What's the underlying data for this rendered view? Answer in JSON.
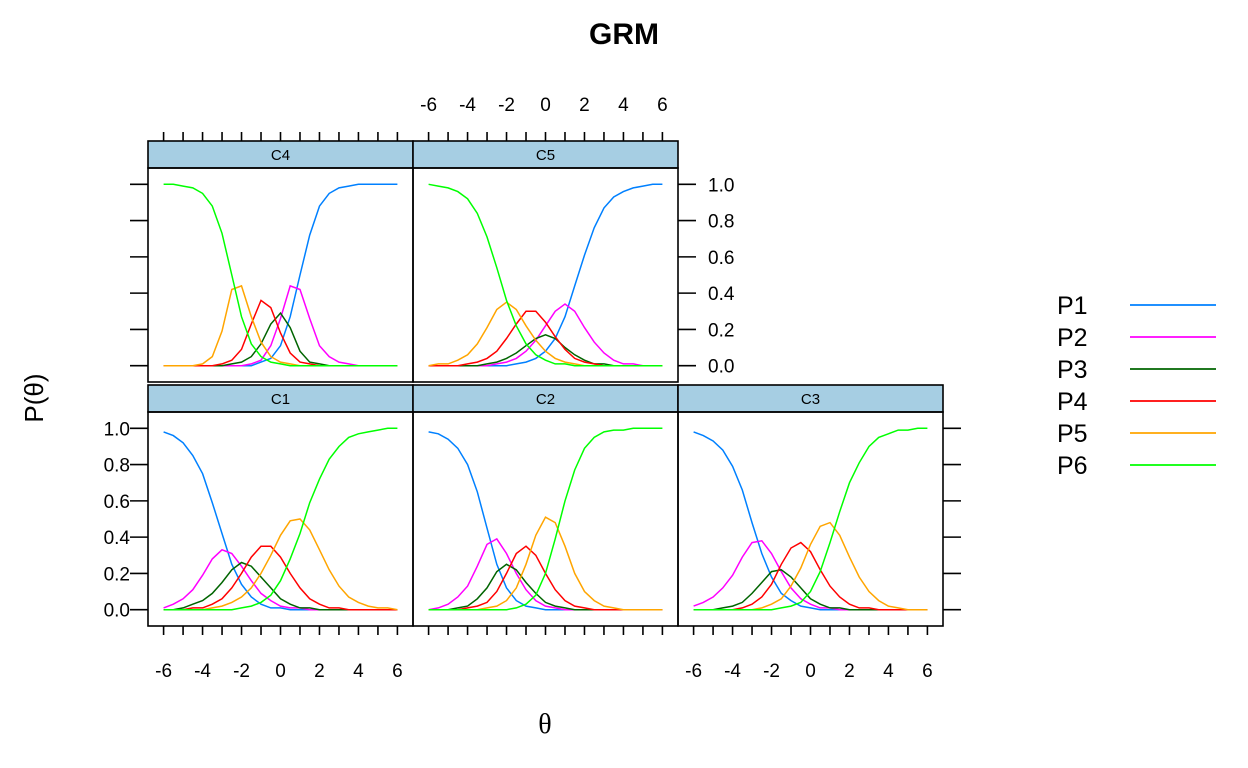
{
  "chart_data": {
    "type": "line",
    "title": "GRM",
    "xlabel": "θ",
    "ylabel": "P(θ)",
    "xlim": [
      -6.8,
      6.8
    ],
    "ylim": [
      -0.09,
      1.09
    ],
    "x_ticks": [
      -6,
      -4,
      -2,
      0,
      2,
      4,
      6
    ],
    "x_tick_labels": [
      "-6",
      "-4",
      "-2",
      "0",
      "2",
      "4",
      "6"
    ],
    "y_ticks": [
      0.0,
      0.2,
      0.4,
      0.6,
      0.8,
      1.0
    ],
    "y_tick_labels": [
      "0.0",
      "0.2",
      "0.4",
      "0.6",
      "0.8",
      "1.0"
    ],
    "x_grid": [
      -6,
      -5,
      -4,
      -3,
      -2,
      -1,
      0,
      1,
      2,
      3,
      4,
      5,
      6
    ],
    "grid": false,
    "legend_position": "right",
    "series_names": [
      "P1",
      "P2",
      "P3",
      "P4",
      "P5",
      "P6"
    ],
    "series_colors": [
      "#0080ff",
      "#ff00ff",
      "#006400",
      "#ff0000",
      "#ffa500",
      "#00ff00"
    ],
    "panels": [
      {
        "name": "C1",
        "P1": [
          0.98,
          0.96,
          0.92,
          0.85,
          0.75,
          0.59,
          0.42,
          0.25,
          0.14,
          0.07,
          0.03,
          0.01,
          0.01,
          0.0,
          0.0,
          0.0,
          0.0,
          0.0,
          0.0,
          0.0,
          0.0,
          0.0,
          0.0,
          0.0,
          0.0
        ],
        "P2": [
          0.01,
          0.03,
          0.06,
          0.11,
          0.19,
          0.28,
          0.33,
          0.31,
          0.24,
          0.16,
          0.09,
          0.05,
          0.02,
          0.01,
          0.01,
          0.0,
          0.0,
          0.0,
          0.0,
          0.0,
          0.0,
          0.0,
          0.0,
          0.0,
          0.0
        ],
        "P3": [
          0.0,
          0.0,
          0.01,
          0.03,
          0.05,
          0.09,
          0.15,
          0.22,
          0.26,
          0.24,
          0.18,
          0.12,
          0.06,
          0.03,
          0.01,
          0.01,
          0.0,
          0.0,
          0.0,
          0.0,
          0.0,
          0.0,
          0.0,
          0.0,
          0.0
        ],
        "P4": [
          0.0,
          0.0,
          0.0,
          0.01,
          0.01,
          0.03,
          0.06,
          0.12,
          0.2,
          0.29,
          0.35,
          0.35,
          0.29,
          0.2,
          0.12,
          0.06,
          0.03,
          0.01,
          0.01,
          0.0,
          0.0,
          0.0,
          0.0,
          0.0,
          0.0
        ],
        "P5": [
          0.0,
          0.0,
          0.0,
          0.0,
          0.0,
          0.01,
          0.02,
          0.04,
          0.07,
          0.12,
          0.2,
          0.3,
          0.41,
          0.49,
          0.5,
          0.44,
          0.33,
          0.22,
          0.13,
          0.07,
          0.04,
          0.02,
          0.01,
          0.01,
          0.0
        ],
        "P6": [
          0.0,
          0.0,
          0.0,
          0.0,
          0.0,
          0.0,
          0.0,
          0.0,
          0.01,
          0.02,
          0.04,
          0.08,
          0.16,
          0.28,
          0.42,
          0.59,
          0.72,
          0.83,
          0.9,
          0.95,
          0.97,
          0.98,
          0.99,
          1.0,
          1.0
        ]
      },
      {
        "name": "C2",
        "P1": [
          0.98,
          0.97,
          0.94,
          0.89,
          0.8,
          0.65,
          0.45,
          0.25,
          0.12,
          0.05,
          0.02,
          0.01,
          0.0,
          0.0,
          0.0,
          0.0,
          0.0,
          0.0,
          0.0,
          0.0,
          0.0,
          0.0,
          0.0,
          0.0,
          0.0
        ],
        "P2": [
          0.0,
          0.01,
          0.03,
          0.07,
          0.13,
          0.24,
          0.36,
          0.39,
          0.31,
          0.2,
          0.11,
          0.05,
          0.02,
          0.01,
          0.0,
          0.0,
          0.0,
          0.0,
          0.0,
          0.0,
          0.0,
          0.0,
          0.0,
          0.0,
          0.0
        ],
        "P3": [
          0.0,
          0.0,
          0.0,
          0.01,
          0.02,
          0.06,
          0.12,
          0.21,
          0.25,
          0.22,
          0.15,
          0.09,
          0.04,
          0.02,
          0.01,
          0.0,
          0.0,
          0.0,
          0.0,
          0.0,
          0.0,
          0.0,
          0.0,
          0.0,
          0.0
        ],
        "P4": [
          0.0,
          0.0,
          0.0,
          0.0,
          0.01,
          0.02,
          0.04,
          0.1,
          0.2,
          0.31,
          0.35,
          0.3,
          0.2,
          0.11,
          0.05,
          0.02,
          0.01,
          0.0,
          0.0,
          0.0,
          0.0,
          0.0,
          0.0,
          0.0,
          0.0
        ],
        "P5": [
          0.0,
          0.0,
          0.0,
          0.0,
          0.0,
          0.0,
          0.01,
          0.02,
          0.05,
          0.12,
          0.25,
          0.41,
          0.51,
          0.48,
          0.35,
          0.2,
          0.1,
          0.05,
          0.02,
          0.01,
          0.0,
          0.0,
          0.0,
          0.0,
          0.0
        ],
        "P6": [
          0.0,
          0.0,
          0.0,
          0.0,
          0.0,
          0.0,
          0.0,
          0.0,
          0.0,
          0.01,
          0.03,
          0.08,
          0.2,
          0.39,
          0.6,
          0.77,
          0.89,
          0.95,
          0.98,
          0.99,
          0.99,
          1.0,
          1.0,
          1.0,
          1.0
        ]
      },
      {
        "name": "C3",
        "P1": [
          0.98,
          0.96,
          0.93,
          0.88,
          0.79,
          0.66,
          0.48,
          0.31,
          0.18,
          0.09,
          0.05,
          0.02,
          0.01,
          0.0,
          0.0,
          0.0,
          0.0,
          0.0,
          0.0,
          0.0,
          0.0,
          0.0,
          0.0,
          0.0,
          0.0
        ],
        "P2": [
          0.02,
          0.04,
          0.07,
          0.12,
          0.19,
          0.29,
          0.37,
          0.38,
          0.31,
          0.21,
          0.12,
          0.06,
          0.03,
          0.01,
          0.01,
          0.0,
          0.0,
          0.0,
          0.0,
          0.0,
          0.0,
          0.0,
          0.0,
          0.0,
          0.0
        ],
        "P3": [
          0.0,
          0.0,
          0.0,
          0.01,
          0.02,
          0.04,
          0.09,
          0.15,
          0.21,
          0.22,
          0.18,
          0.12,
          0.06,
          0.03,
          0.01,
          0.01,
          0.0,
          0.0,
          0.0,
          0.0,
          0.0,
          0.0,
          0.0,
          0.0,
          0.0
        ],
        "P4": [
          0.0,
          0.0,
          0.0,
          0.0,
          0.0,
          0.01,
          0.03,
          0.07,
          0.14,
          0.25,
          0.34,
          0.37,
          0.32,
          0.22,
          0.13,
          0.07,
          0.03,
          0.01,
          0.01,
          0.0,
          0.0,
          0.0,
          0.0,
          0.0,
          0.0
        ],
        "P5": [
          0.0,
          0.0,
          0.0,
          0.0,
          0.0,
          0.0,
          0.0,
          0.01,
          0.03,
          0.06,
          0.13,
          0.23,
          0.36,
          0.46,
          0.48,
          0.41,
          0.29,
          0.18,
          0.1,
          0.05,
          0.02,
          0.01,
          0.0,
          0.0,
          0.0
        ],
        "P6": [
          0.0,
          0.0,
          0.0,
          0.0,
          0.0,
          0.0,
          0.0,
          0.0,
          0.0,
          0.01,
          0.02,
          0.04,
          0.1,
          0.21,
          0.37,
          0.54,
          0.7,
          0.81,
          0.9,
          0.95,
          0.97,
          0.99,
          0.99,
          1.0,
          1.0
        ]
      },
      {
        "name": "C4",
        "P1": [
          0.0,
          0.0,
          0.0,
          0.0,
          0.0,
          0.0,
          0.0,
          0.0,
          0.0,
          0.0,
          0.02,
          0.04,
          0.11,
          0.27,
          0.5,
          0.72,
          0.88,
          0.95,
          0.98,
          0.99,
          1.0,
          1.0,
          1.0,
          1.0,
          1.0
        ],
        "P2": [
          0.0,
          0.0,
          0.0,
          0.0,
          0.0,
          0.0,
          0.0,
          0.0,
          0.0,
          0.01,
          0.03,
          0.11,
          0.26,
          0.44,
          0.42,
          0.26,
          0.11,
          0.05,
          0.02,
          0.01,
          0.0,
          0.0,
          0.0,
          0.0,
          0.0
        ],
        "P3": [
          0.0,
          0.0,
          0.0,
          0.0,
          0.0,
          0.0,
          0.0,
          0.01,
          0.02,
          0.05,
          0.12,
          0.23,
          0.29,
          0.21,
          0.08,
          0.02,
          0.01,
          0.0,
          0.0,
          0.0,
          0.0,
          0.0,
          0.0,
          0.0,
          0.0
        ],
        "P4": [
          0.0,
          0.0,
          0.0,
          0.0,
          0.0,
          0.0,
          0.01,
          0.03,
          0.09,
          0.23,
          0.36,
          0.32,
          0.18,
          0.07,
          0.02,
          0.01,
          0.0,
          0.0,
          0.0,
          0.0,
          0.0,
          0.0,
          0.0,
          0.0,
          0.0
        ],
        "P5": [
          0.0,
          0.0,
          0.0,
          0.0,
          0.01,
          0.05,
          0.19,
          0.42,
          0.44,
          0.27,
          0.13,
          0.05,
          0.02,
          0.01,
          0.0,
          0.0,
          0.0,
          0.0,
          0.0,
          0.0,
          0.0,
          0.0,
          0.0,
          0.0,
          0.0
        ],
        "P6": [
          1.0,
          1.0,
          0.99,
          0.98,
          0.95,
          0.88,
          0.73,
          0.5,
          0.27,
          0.12,
          0.05,
          0.02,
          0.01,
          0.0,
          0.0,
          0.0,
          0.0,
          0.0,
          0.0,
          0.0,
          0.0,
          0.0,
          0.0,
          0.0,
          0.0
        ]
      },
      {
        "name": "C5",
        "P1": [
          0.0,
          0.0,
          0.0,
          0.0,
          0.0,
          0.0,
          0.0,
          0.0,
          0.0,
          0.01,
          0.02,
          0.04,
          0.08,
          0.15,
          0.27,
          0.44,
          0.61,
          0.76,
          0.87,
          0.93,
          0.96,
          0.98,
          0.99,
          1.0,
          1.0
        ],
        "P2": [
          0.0,
          0.0,
          0.0,
          0.0,
          0.0,
          0.0,
          0.0,
          0.01,
          0.02,
          0.04,
          0.08,
          0.14,
          0.22,
          0.3,
          0.34,
          0.3,
          0.21,
          0.13,
          0.07,
          0.03,
          0.01,
          0.01,
          0.0,
          0.0,
          0.0
        ],
        "P3": [
          0.0,
          0.0,
          0.0,
          0.0,
          0.0,
          0.0,
          0.01,
          0.02,
          0.04,
          0.07,
          0.11,
          0.15,
          0.17,
          0.15,
          0.1,
          0.06,
          0.03,
          0.01,
          0.01,
          0.0,
          0.0,
          0.0,
          0.0,
          0.0,
          0.0
        ],
        "P4": [
          0.0,
          0.0,
          0.0,
          0.0,
          0.01,
          0.02,
          0.04,
          0.08,
          0.15,
          0.23,
          0.3,
          0.3,
          0.24,
          0.16,
          0.09,
          0.04,
          0.02,
          0.01,
          0.0,
          0.0,
          0.0,
          0.0,
          0.0,
          0.0,
          0.0
        ],
        "P5": [
          0.0,
          0.01,
          0.01,
          0.03,
          0.06,
          0.12,
          0.21,
          0.31,
          0.35,
          0.31,
          0.22,
          0.14,
          0.08,
          0.04,
          0.02,
          0.01,
          0.0,
          0.0,
          0.0,
          0.0,
          0.0,
          0.0,
          0.0,
          0.0,
          0.0
        ],
        "P6": [
          1.0,
          0.99,
          0.98,
          0.96,
          0.92,
          0.84,
          0.71,
          0.54,
          0.36,
          0.22,
          0.12,
          0.06,
          0.03,
          0.01,
          0.01,
          0.0,
          0.0,
          0.0,
          0.0,
          0.0,
          0.0,
          0.0,
          0.0,
          0.0,
          0.0
        ]
      }
    ]
  }
}
